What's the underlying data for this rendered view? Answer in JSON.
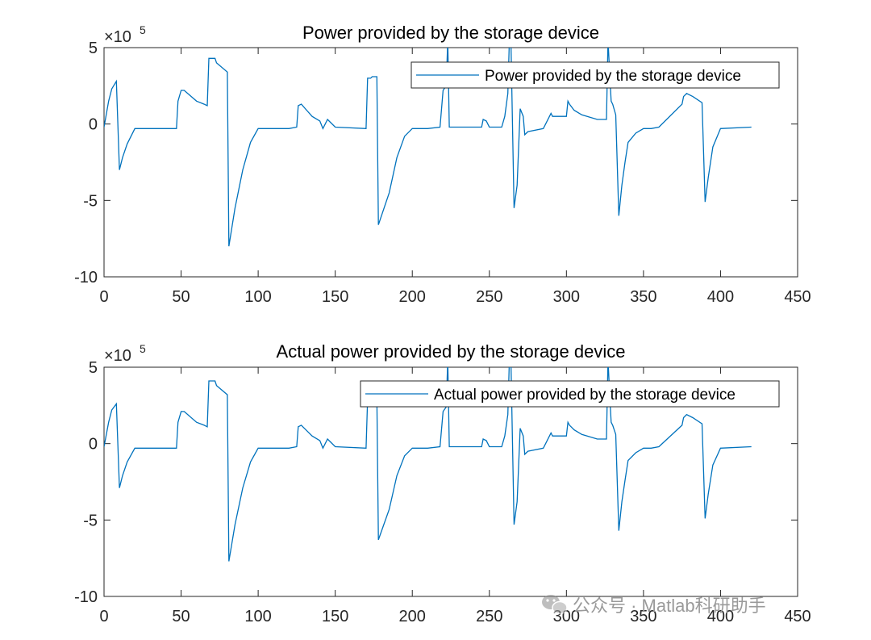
{
  "chart_data": [
    {
      "type": "line",
      "title": "Power provided by the storage device",
      "xlim": [
        0,
        450
      ],
      "ylim": [
        -10,
        5
      ],
      "y_exponent": "×10^5",
      "y_exponent_base": "×10",
      "y_exponent_power": "5",
      "xticks": [
        "0",
        "50",
        "100",
        "150",
        "200",
        "250",
        "300",
        "350",
        "400",
        "450"
      ],
      "yticks": [
        "5",
        "0",
        "-5",
        "-10"
      ],
      "legend_placement": "top-right",
      "grid": false,
      "color": "#0072BD",
      "series": [
        {
          "name": "Power provided by the storage device",
          "x": [
            0,
            3,
            5,
            8,
            10,
            12,
            15,
            20,
            47,
            48,
            50,
            52,
            60,
            65,
            67,
            68,
            72,
            73,
            80,
            81,
            85,
            90,
            95,
            100,
            120,
            125,
            126,
            128,
            135,
            140,
            142,
            145,
            150,
            170,
            171,
            173,
            174,
            177,
            178,
            185,
            190,
            195,
            200,
            210,
            218,
            220,
            222,
            223,
            224,
            245,
            246,
            248,
            250,
            258,
            260,
            262,
            263,
            264,
            266,
            268,
            270,
            272,
            273,
            275,
            285,
            290,
            291,
            300,
            301,
            302,
            305,
            310,
            320,
            326,
            327,
            328,
            329,
            330,
            332,
            334,
            336,
            338,
            340,
            345,
            350,
            355,
            360,
            375,
            376,
            378,
            382,
            388,
            390,
            392,
            395,
            400,
            420
          ],
          "y": [
            -0.2,
            1.5,
            2.3,
            2.8,
            -3.0,
            -2.2,
            -1.3,
            -0.3,
            -0.3,
            1.5,
            2.2,
            2.2,
            1.5,
            1.3,
            1.2,
            4.3,
            4.3,
            4.0,
            3.4,
            -8.0,
            -5.5,
            -3.0,
            -1.2,
            -0.3,
            -0.3,
            -0.2,
            1.2,
            1.3,
            0.5,
            0.2,
            -0.3,
            0.3,
            -0.2,
            -0.3,
            3.0,
            3.0,
            3.1,
            3.1,
            -6.6,
            -4.5,
            -2.2,
            -0.8,
            -0.3,
            -0.3,
            -0.2,
            2.2,
            2.5,
            5.5,
            -0.2,
            -0.2,
            0.3,
            0.2,
            -0.2,
            -0.2,
            0.5,
            2.0,
            5.5,
            5.5,
            -5.5,
            -4.0,
            1.0,
            0.5,
            -0.7,
            -0.5,
            -0.3,
            0.7,
            0.5,
            0.5,
            1.5,
            1.3,
            0.9,
            0.6,
            0.3,
            0.3,
            5.5,
            3.5,
            1.5,
            1.3,
            0.6,
            -6.0,
            -4.0,
            -2.5,
            -1.2,
            -0.6,
            -0.3,
            -0.3,
            -0.2,
            1.3,
            1.8,
            2.0,
            1.8,
            1.4,
            -5.1,
            -3.5,
            -1.5,
            -0.3,
            -0.2
          ]
        }
      ]
    },
    {
      "type": "line",
      "title": "Actual power provided by the storage device",
      "xlim": [
        0,
        450
      ],
      "ylim": [
        -10,
        5
      ],
      "y_exponent": "×10^5",
      "y_exponent_base": "×10",
      "y_exponent_power": "5",
      "xticks": [
        "0",
        "50",
        "100",
        "150",
        "200",
        "250",
        "300",
        "350",
        "400",
        "450"
      ],
      "yticks": [
        "5",
        "0",
        "-5",
        "-10"
      ],
      "legend_placement": "top-right",
      "grid": false,
      "color": "#0072BD",
      "series": [
        {
          "name": "Actual power provided by the storage device",
          "x": [
            0,
            3,
            5,
            8,
            10,
            12,
            15,
            20,
            47,
            48,
            50,
            52,
            60,
            65,
            67,
            68,
            72,
            73,
            80,
            81,
            85,
            90,
            95,
            100,
            120,
            125,
            126,
            128,
            135,
            140,
            142,
            145,
            150,
            170,
            171,
            173,
            174,
            177,
            178,
            185,
            190,
            195,
            200,
            210,
            218,
            220,
            222,
            223,
            224,
            245,
            246,
            248,
            250,
            258,
            260,
            262,
            263,
            264,
            266,
            268,
            270,
            272,
            273,
            275,
            285,
            290,
            291,
            300,
            301,
            302,
            305,
            310,
            320,
            326,
            327,
            328,
            329,
            330,
            332,
            334,
            336,
            338,
            340,
            345,
            350,
            355,
            360,
            375,
            376,
            378,
            382,
            388,
            390,
            392,
            395,
            400,
            420
          ],
          "y": [
            -0.2,
            1.4,
            2.2,
            2.6,
            -2.9,
            -2.1,
            -1.2,
            -0.3,
            -0.3,
            1.4,
            2.1,
            2.1,
            1.4,
            1.2,
            1.1,
            4.1,
            4.1,
            3.8,
            3.2,
            -7.7,
            -5.3,
            -2.9,
            -1.2,
            -0.3,
            -0.3,
            -0.2,
            1.1,
            1.2,
            0.5,
            0.2,
            -0.3,
            0.3,
            -0.2,
            -0.3,
            2.9,
            2.9,
            3.0,
            3.0,
            -6.3,
            -4.3,
            -2.1,
            -0.8,
            -0.3,
            -0.3,
            -0.2,
            2.1,
            2.4,
            5.5,
            -0.2,
            -0.2,
            0.3,
            0.2,
            -0.2,
            -0.2,
            0.5,
            1.9,
            5.5,
            5.5,
            -5.3,
            -3.8,
            1.0,
            0.5,
            -0.7,
            -0.5,
            -0.3,
            0.7,
            0.5,
            0.5,
            1.4,
            1.2,
            0.9,
            0.6,
            0.3,
            0.3,
            5.5,
            3.4,
            1.4,
            1.2,
            0.6,
            -5.7,
            -3.8,
            -2.4,
            -1.1,
            -0.6,
            -0.3,
            -0.3,
            -0.2,
            1.2,
            1.7,
            1.9,
            1.7,
            1.3,
            -4.9,
            -3.3,
            -1.4,
            -0.3,
            -0.2
          ]
        }
      ]
    }
  ],
  "watermark": {
    "text": "公众号 · Matlab科研助手",
    "icon": "wechat-icon"
  }
}
